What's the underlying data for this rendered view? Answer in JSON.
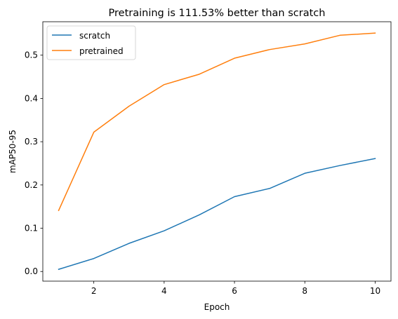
{
  "chart_data": {
    "type": "line",
    "title": "Pretraining is 111.53% better than scratch",
    "xlabel": "Epoch",
    "ylabel": "mAP50-95",
    "x": [
      1,
      2,
      3,
      4,
      5,
      6,
      7,
      8,
      9,
      10
    ],
    "xticks": [
      2,
      4,
      6,
      8,
      10
    ],
    "yticks": [
      0.0,
      0.1,
      0.2,
      0.3,
      0.4,
      0.5
    ],
    "xlim": [
      0.55,
      10.45
    ],
    "ylim": [
      -0.0223,
      0.5773
    ],
    "grid": false,
    "legend_position": "top-left",
    "series": [
      {
        "name": "scratch",
        "color": "#1f77b4",
        "values": [
          0.005,
          0.03,
          0.065,
          0.094,
          0.131,
          0.173,
          0.192,
          0.227,
          0.245,
          0.261
        ]
      },
      {
        "name": "pretrained",
        "color": "#ff7f0e",
        "values": [
          0.141,
          0.322,
          0.382,
          0.432,
          0.456,
          0.493,
          0.513,
          0.526,
          0.546,
          0.551
        ]
      }
    ]
  }
}
